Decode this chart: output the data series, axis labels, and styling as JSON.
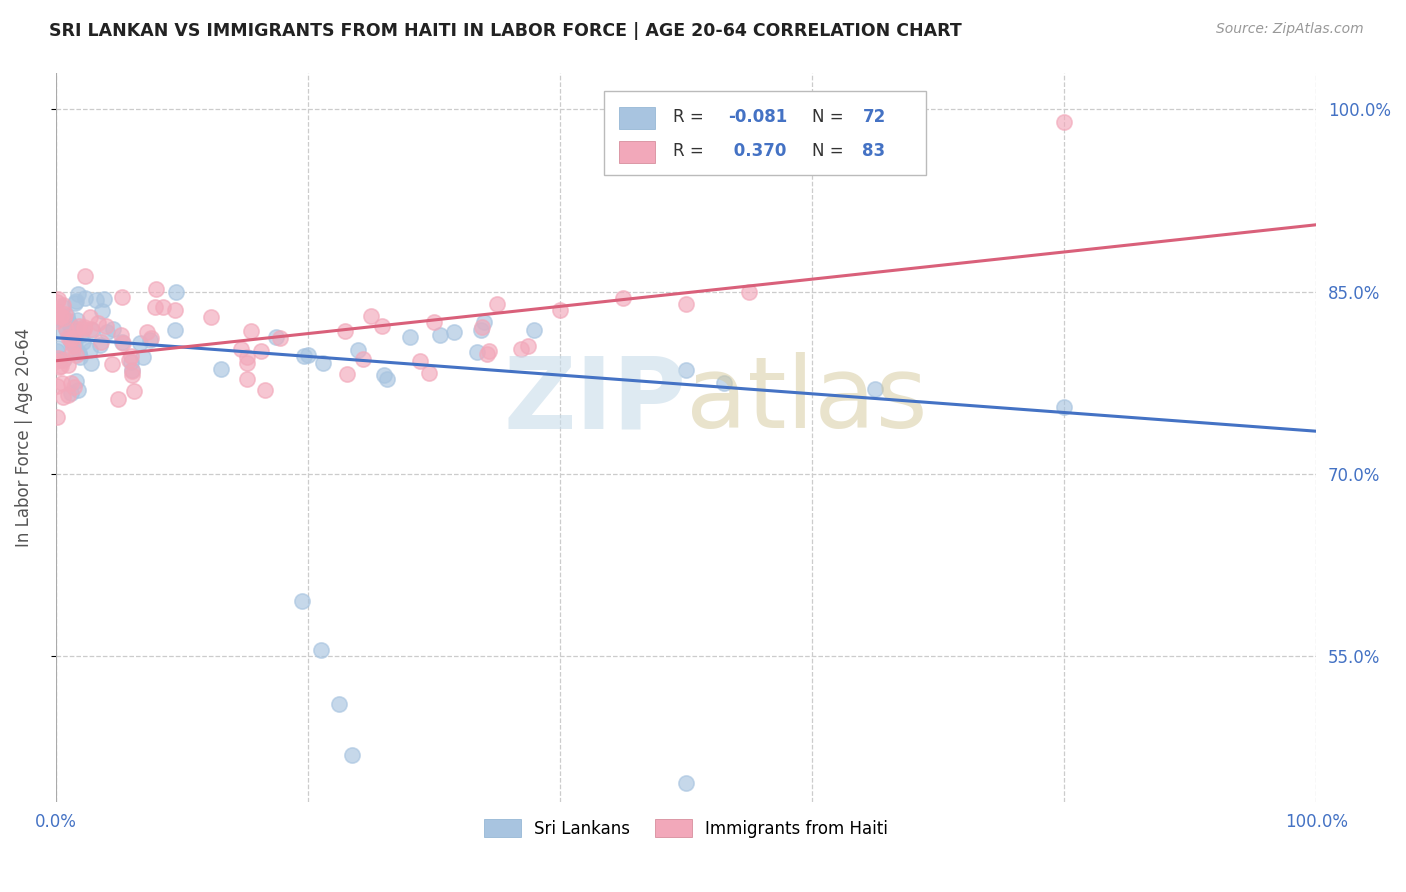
{
  "title": "SRI LANKAN VS IMMIGRANTS FROM HAITI IN LABOR FORCE | AGE 20-64 CORRELATION CHART",
  "source": "Source: ZipAtlas.com",
  "ylabel": "In Labor Force | Age 20-64",
  "xlim": [
    0.0,
    1.0
  ],
  "ylim": [
    0.43,
    1.03
  ],
  "sri_lankan_color": "#a8c4e0",
  "haiti_color": "#f2a8ba",
  "sri_lankan_line_color": "#4472c4",
  "haiti_line_color": "#d9607a",
  "sri_line_start": 0.812,
  "sri_line_end": 0.735,
  "haiti_line_start": 0.793,
  "haiti_line_end": 0.905,
  "point_size": 120,
  "point_alpha": 0.65,
  "title_fontsize": 12.5,
  "axis_label_color": "#4472c4",
  "ylabel_color": "#555555"
}
